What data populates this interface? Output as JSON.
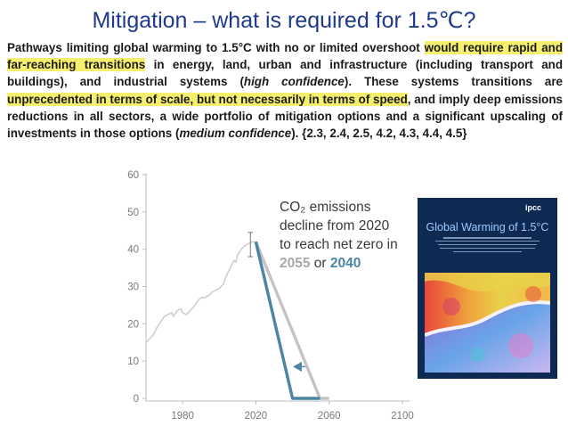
{
  "page": {
    "title": "Mitigation – what is required for 1.5℃?"
  },
  "statement": {
    "part1": "Pathways limiting global warming to 1.5°C with no or limited overshoot ",
    "hl1": "would require rapid and far-reaching transitions",
    "part2": " in energy, land, urban and infrastructure (including transport and buildings), and industrial systems (",
    "conf1": "high confidence",
    "part3": "). These systems transitions are ",
    "hl2": "unprecedented in terms of scale, but not necessarily in terms of speed",
    "part4": ", and imply deep emissions reductions in all sectors, a wide portfolio of mitigation options and a significant upscaling of investments in those options (",
    "conf2": "medium confidence",
    "part5": "). {2.3, 2.4, 2.5, 4.2, 4.3, 4.4, 4.5}"
  },
  "annotation": {
    "line1": "CO₂ emissions",
    "line2": "decline from 2020",
    "line3": "to reach net zero in",
    "year_a": "2055",
    "connector": " or ",
    "year_b": "2040"
  },
  "cover": {
    "logo": "ipcc",
    "title": "Global Warming of 1.5°C"
  },
  "colors": {
    "title": "#1f3a8a",
    "highlight": "#f6ef6e",
    "historical_line": "#cfcfcf",
    "pathway_2055": "#c4c4c4",
    "pathway_2040": "#4a86a3",
    "year_2055_text": "#a9a9a9",
    "year_2040_text": "#4a86a3",
    "cover_bg": "#0f2a52"
  },
  "chart_data": {
    "type": "line",
    "xlim": [
      1960,
      2100
    ],
    "ylim": [
      0,
      60
    ],
    "xticks": [
      1980,
      2020,
      2060,
      2100
    ],
    "yticks": [
      0,
      10,
      20,
      30,
      40,
      50,
      60
    ],
    "grid": false,
    "series": [
      {
        "role": "historical",
        "color": "#cfcfcf",
        "points": [
          [
            1960,
            15
          ],
          [
            1962,
            16
          ],
          [
            1964,
            17
          ],
          [
            1966,
            19
          ],
          [
            1968,
            20.5
          ],
          [
            1970,
            22
          ],
          [
            1972,
            22.5
          ],
          [
            1974,
            23
          ],
          [
            1975,
            22
          ],
          [
            1977,
            23.5
          ],
          [
            1979,
            24
          ],
          [
            1980,
            23
          ],
          [
            1982,
            22.5
          ],
          [
            1984,
            23.5
          ],
          [
            1986,
            24.5
          ],
          [
            1988,
            26
          ],
          [
            1990,
            27
          ],
          [
            1992,
            27
          ],
          [
            1994,
            27.5
          ],
          [
            1996,
            28.5
          ],
          [
            1998,
            29
          ],
          [
            2000,
            29.5
          ],
          [
            2002,
            30.5
          ],
          [
            2004,
            33
          ],
          [
            2006,
            35
          ],
          [
            2008,
            37
          ],
          [
            2009,
            36.5
          ],
          [
            2010,
            38.5
          ],
          [
            2012,
            40
          ],
          [
            2014,
            41
          ],
          [
            2016,
            41.5
          ],
          [
            2018,
            42
          ],
          [
            2020,
            42
          ]
        ]
      },
      {
        "role": "net-zero-2055",
        "color": "#c4c4c4",
        "points": [
          [
            2020,
            42
          ],
          [
            2055,
            0
          ],
          [
            2060,
            0
          ]
        ]
      },
      {
        "role": "net-zero-2040",
        "color": "#4a86a3",
        "points": [
          [
            2020,
            42
          ],
          [
            2040,
            0
          ],
          [
            2055,
            0
          ]
        ]
      }
    ],
    "error_bar": {
      "x": 2017,
      "y": 41,
      "low": 38,
      "high": 44.5
    },
    "arrow": {
      "y": 8.5,
      "from_x": 2047,
      "to_x": 2040
    }
  }
}
